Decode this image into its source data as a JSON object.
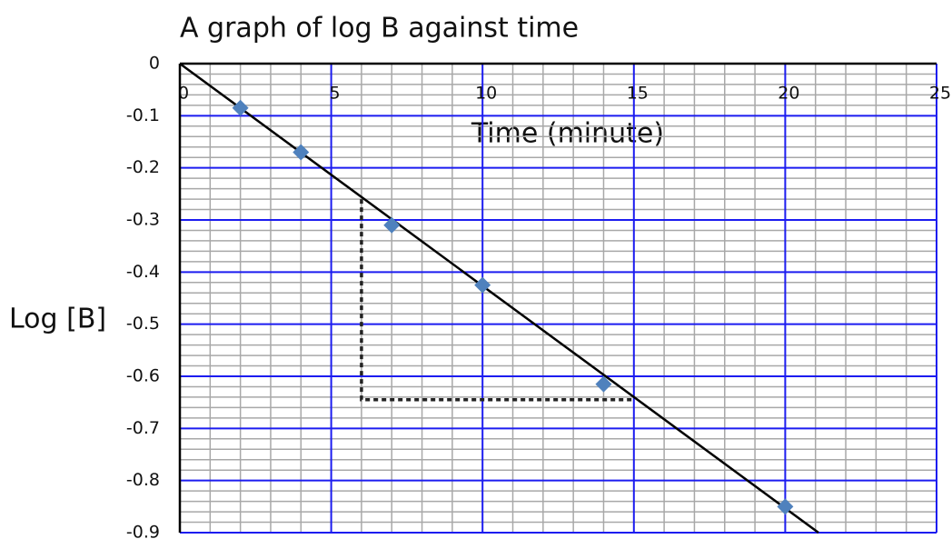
{
  "chart_data": {
    "type": "scatter",
    "title": "A graph of log B against time",
    "x_label": "Time (minute)",
    "y_label": "Log [B]",
    "x": [
      2,
      4,
      7,
      10,
      14,
      20
    ],
    "values": [
      -0.085,
      -0.17,
      -0.31,
      -0.425,
      -0.615,
      -0.85
    ],
    "color": "#4f81bd",
    "xlim": [
      0,
      25
    ],
    "xticks": [
      0,
      5,
      10,
      15,
      20,
      25
    ],
    "ylim": [
      -0.9,
      0
    ],
    "yticks": [
      0,
      -0.1,
      -0.2,
      -0.3,
      -0.4,
      -0.5,
      -0.6,
      -0.7,
      -0.8,
      -0.9
    ],
    "grid": true,
    "grid_color": "#1c1cf0",
    "minor_grid_color": "#a8a8a8",
    "minor_divisions": 5,
    "trendline": {
      "x": [
        0,
        21.1
      ],
      "values": [
        0,
        -0.9
      ],
      "color": "#000000"
    },
    "slope_triangle": {
      "x": [
        6,
        6,
        15
      ],
      "values": [
        -0.26,
        -0.645,
        -0.645
      ],
      "color": "#222222"
    }
  }
}
